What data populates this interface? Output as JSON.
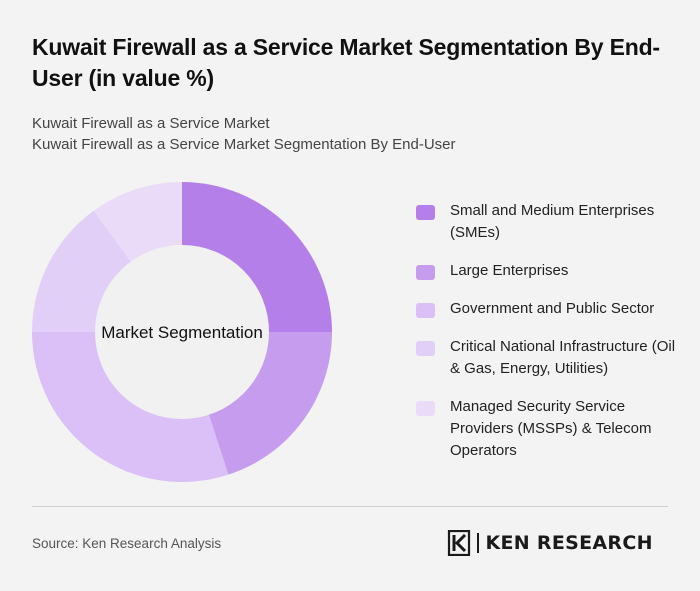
{
  "title": "Kuwait Firewall as a Service Market Segmentation By End-User (in value %)",
  "subtitle_lines": [
    "Kuwait Firewall as a Service Market",
    "Kuwait Firewall as a Service Market Segmentation By End-User"
  ],
  "source": "Source: Ken Research Analysis",
  "logo_text": "KEN RESEARCH",
  "chart_data": {
    "type": "pie",
    "donut": true,
    "center_label": "Market Segmentation",
    "legend_position": "right",
    "categories": [
      "Small and Medium Enterprises (SMEs)",
      "Large Enterprises",
      "Government and Public Sector",
      "Critical National Infrastructure (Oil & Gas, Energy, Utilities)",
      "Managed Security Service Providers (MSSPs) & Telecom Operators"
    ],
    "values": [
      25,
      20,
      30,
      15,
      10
    ],
    "colors": [
      "#b57fe9",
      "#c59cee",
      "#dac0f6",
      "#e2cff7",
      "#eadcf9"
    ]
  }
}
